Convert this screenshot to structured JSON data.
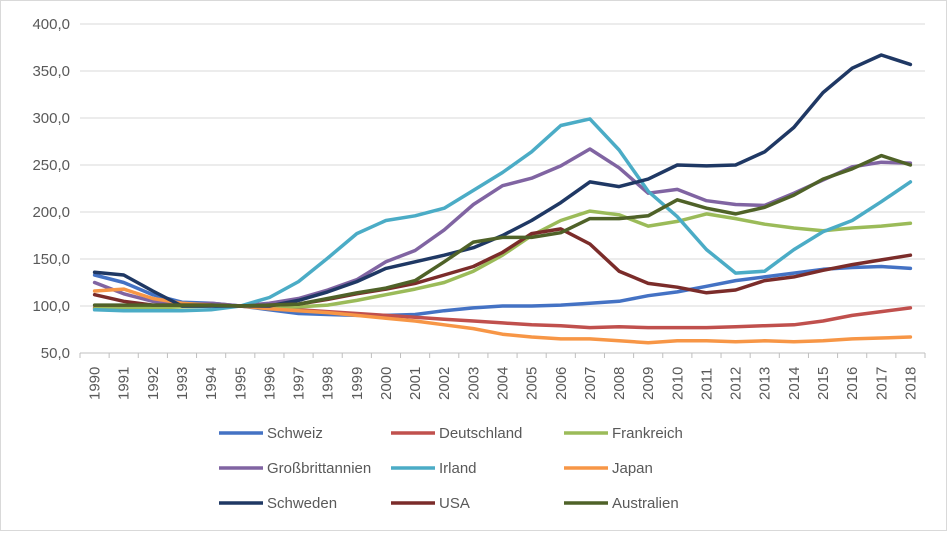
{
  "chart_data": {
    "type": "line",
    "title": "",
    "xlabel": "",
    "ylabel": "",
    "ylim": [
      50,
      400
    ],
    "yticks": [
      "50,0",
      "100,0",
      "150,0",
      "200,0",
      "250,0",
      "300,0",
      "350,0",
      "400,0"
    ],
    "categories": [
      "1990",
      "1991",
      "1992",
      "1993",
      "1994",
      "1995",
      "1996",
      "1997",
      "1998",
      "1999",
      "2000",
      "2001",
      "2002",
      "2003",
      "2004",
      "2005",
      "2006",
      "2007",
      "2008",
      "2009",
      "2010",
      "2011",
      "2012",
      "2013",
      "2014",
      "2015",
      "2016",
      "2017",
      "2018"
    ],
    "grid": true,
    "legend": "bottom",
    "series": [
      {
        "name": "Schweiz",
        "color": "#4472C4",
        "values": [
          133,
          125,
          112,
          104,
          103,
          100,
          96,
          92,
          91,
          90,
          90,
          91,
          95,
          98,
          100,
          100,
          101,
          103,
          105,
          111,
          115,
          121,
          127,
          131,
          135,
          139,
          141,
          142,
          140
        ]
      },
      {
        "name": "Deutschland",
        "color": "#C0504D",
        "values": [
          98,
          99,
          100,
          101,
          101,
          100,
          98,
          96,
          94,
          92,
          90,
          88,
          86,
          84,
          82,
          80,
          79,
          77,
          78,
          77,
          77,
          77,
          78,
          79,
          80,
          84,
          90,
          94,
          98
        ]
      },
      {
        "name": "Frankreich",
        "color": "#9BBB59",
        "values": [
          97,
          97,
          98,
          99,
          100,
          100,
          99,
          99,
          101,
          106,
          112,
          118,
          125,
          137,
          154,
          175,
          191,
          201,
          197,
          185,
          190,
          198,
          193,
          187,
          183,
          180,
          183,
          185,
          188
        ]
      },
      {
        "name": "Großbrittannien",
        "color": "#8064A2",
        "values": [
          125,
          113,
          105,
          101,
          103,
          100,
          103,
          108,
          117,
          128,
          147,
          159,
          181,
          208,
          228,
          236,
          249,
          267,
          247,
          220,
          224,
          212,
          208,
          207,
          220,
          234,
          248,
          253,
          252
        ]
      },
      {
        "name": "Irland",
        "color": "#4BACC6",
        "values": [
          96,
          95,
          95,
          95,
          96,
          100,
          109,
          126,
          151,
          177,
          191,
          196,
          204,
          223,
          242,
          264,
          292,
          299,
          266,
          222,
          195,
          160,
          135,
          137,
          160,
          179,
          191,
          211,
          232
        ]
      },
      {
        "name": "Japan",
        "color": "#F79646",
        "values": [
          116,
          118,
          108,
          103,
          101,
          100,
          97,
          95,
          93,
          90,
          87,
          84,
          80,
          76,
          70,
          67,
          65,
          65,
          63,
          61,
          63,
          63,
          62,
          63,
          62,
          63,
          65,
          66,
          67
        ]
      },
      {
        "name": "Schweden",
        "color": "#1F3864",
        "values": [
          136,
          133,
          116,
          100,
          100,
          100,
          100,
          106,
          115,
          126,
          140,
          147,
          154,
          162,
          175,
          191,
          210,
          232,
          227,
          235,
          250,
          249,
          250,
          264,
          290,
          327,
          353,
          367,
          357
        ]
      },
      {
        "name": "USA",
        "color": "#7B2C2A",
        "values": [
          112,
          105,
          101,
          101,
          101,
          100,
          101,
          102,
          107,
          113,
          118,
          124,
          133,
          142,
          157,
          177,
          182,
          166,
          137,
          124,
          120,
          114,
          117,
          127,
          131,
          138,
          144,
          149,
          154
        ]
      },
      {
        "name": "Australien",
        "color": "#4F6228",
        "values": [
          101,
          101,
          101,
          101,
          101,
          100,
          101,
          102,
          108,
          114,
          119,
          127,
          147,
          168,
          173,
          173,
          178,
          193,
          193,
          196,
          213,
          204,
          198,
          205,
          218,
          235,
          246,
          260,
          250
        ]
      }
    ]
  }
}
